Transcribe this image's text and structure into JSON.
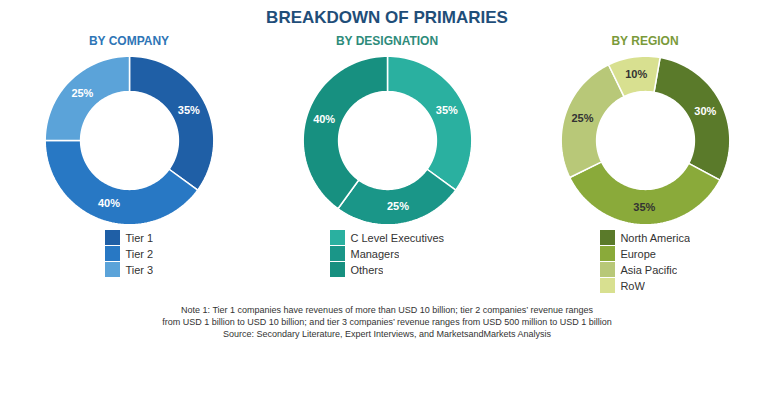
{
  "title": "BREAKDOWN OF PRIMARIES",
  "annotations": [
    "Note 1: Tier 1 companies have revenues of more than USD 10 billion; tier 2 companies’ revenue ranges\nfrom USD 1 billion to USD 10 billion; and tier 3 companies’ revenue ranges from USD 500 million to USD 1 billion\nSource: Secondary Literature, Expert Interviews, and MarketsandMarkets Analysis"
  ],
  "chart_data": [
    {
      "type": "pie",
      "title": "BY COMPANY",
      "categories": [
        "Tier 1",
        "Tier 2",
        "Tier 3"
      ],
      "values": [
        35,
        40,
        25
      ],
      "value_labels": [
        "35%",
        "40%",
        "25%"
      ],
      "colors": [
        "#1f5fa6",
        "#2878c4",
        "#5ba3d9"
      ],
      "data_labels": true,
      "legend": "bottom"
    },
    {
      "type": "pie",
      "title": "BY DESIGNATION",
      "categories": [
        "C Level Executives",
        "Managers",
        "Others"
      ],
      "values": [
        35,
        25,
        40
      ],
      "value_labels": [
        "35%",
        "25%",
        "40%"
      ],
      "colors": [
        "#2ab0a0",
        "#1a9688",
        "#179080"
      ],
      "data_labels": true,
      "legend": "bottom"
    },
    {
      "type": "pie",
      "title": "BY REGION",
      "categories": [
        "North America",
        "Europe",
        "Asia Pacific",
        "RoW"
      ],
      "values": [
        30,
        35,
        25,
        10
      ],
      "value_labels": [
        "30%",
        "35%",
        "25%",
        "10%"
      ],
      "colors": [
        "#5a7a2a",
        "#8aaa3a",
        "#b8c878",
        "#d8e090"
      ],
      "data_labels": true,
      "legend": "bottom"
    }
  ]
}
